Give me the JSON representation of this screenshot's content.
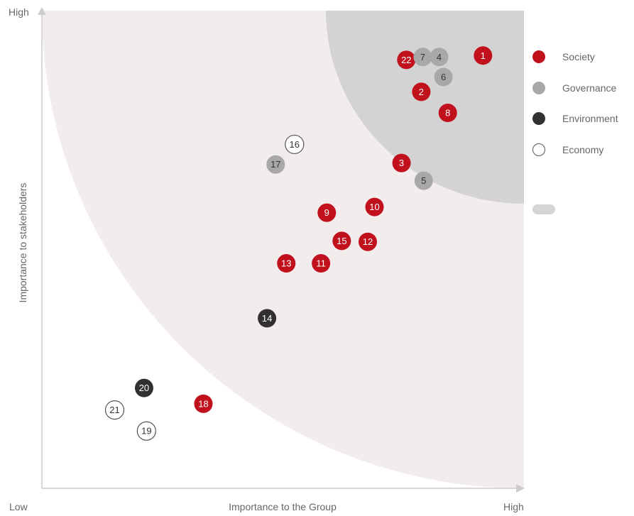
{
  "chart_data": {
    "type": "scatter",
    "xlabel": "Importance to the Group",
    "ylabel": "Importance to stakeholders",
    "x_ticks": {
      "low": "Low",
      "high": "High"
    },
    "y_ticks": {
      "high": "High"
    },
    "xlim": [
      0,
      100
    ],
    "ylim": [
      0,
      100
    ],
    "grid": false,
    "legend_placement": "right",
    "colors": {
      "Society": "#c0111d",
      "Governance": "#a8a8a8",
      "Environment": "#333030",
      "Economy": "#ffffff",
      "zone_outer": "#f3eced",
      "zone_inner": "#d3d3d3",
      "axis": "#cccccc"
    },
    "series": [
      {
        "name": "Society",
        "points": [
          {
            "label": "1",
            "x": 91.5,
            "y": 90.6
          },
          {
            "label": "22",
            "x": 75.6,
            "y": 89.7
          },
          {
            "label": "2",
            "x": 78.7,
            "y": 83.0
          },
          {
            "label": "8",
            "x": 84.2,
            "y": 78.6
          },
          {
            "label": "3",
            "x": 74.6,
            "y": 68.1
          },
          {
            "label": "10",
            "x": 69.0,
            "y": 58.9
          },
          {
            "label": "9",
            "x": 59.1,
            "y": 57.7
          },
          {
            "label": "15",
            "x": 62.2,
            "y": 51.8
          },
          {
            "label": "12",
            "x": 67.6,
            "y": 51.6
          },
          {
            "label": "13",
            "x": 50.7,
            "y": 47.1
          },
          {
            "label": "11",
            "x": 57.9,
            "y": 47.1
          },
          {
            "label": "18",
            "x": 33.5,
            "y": 17.7
          }
        ]
      },
      {
        "name": "Governance",
        "points": [
          {
            "label": "7",
            "x": 79.0,
            "y": 90.3
          },
          {
            "label": "4",
            "x": 82.4,
            "y": 90.3
          },
          {
            "label": "6",
            "x": 83.3,
            "y": 86.1
          },
          {
            "label": "5",
            "x": 79.2,
            "y": 64.4
          },
          {
            "label": "17",
            "x": 48.5,
            "y": 67.8
          }
        ]
      },
      {
        "name": "Environment",
        "points": [
          {
            "label": "14",
            "x": 46.7,
            "y": 35.6
          },
          {
            "label": "20",
            "x": 21.2,
            "y": 21.0
          }
        ]
      },
      {
        "name": "Economy",
        "points": [
          {
            "label": "16",
            "x": 52.4,
            "y": 72.0
          },
          {
            "label": "21",
            "x": 15.1,
            "y": 16.4
          },
          {
            "label": "19",
            "x": 21.7,
            "y": 12.0
          }
        ]
      }
    ]
  },
  "legend": {
    "items": [
      {
        "label": "Society",
        "swatch_color": "#c0111d",
        "swatch_border": "#c0111d"
      },
      {
        "label": "Governance",
        "swatch_color": "#a8a8a8",
        "swatch_border": "#a8a8a8"
      },
      {
        "label": "Environment",
        "swatch_color": "#333030",
        "swatch_border": "#333030"
      },
      {
        "label": "Economy",
        "swatch_color": "#ffffff",
        "swatch_border": "#555555"
      }
    ]
  }
}
